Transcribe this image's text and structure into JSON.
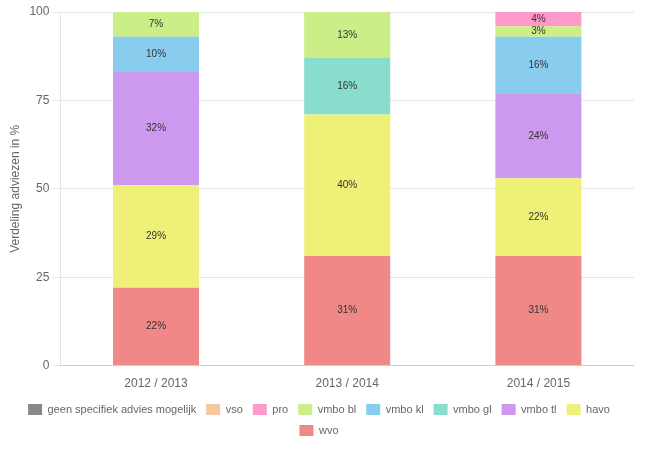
{
  "chart_data": {
    "type": "bar",
    "stacked": true,
    "categories": [
      "2012 / 2013",
      "2013 / 2014",
      "2014 / 2015"
    ],
    "series": [
      {
        "name": "geen specifiek advies mogelijk",
        "color": "#888888",
        "values": [
          0,
          0,
          0
        ],
        "value_labels": [
          null,
          null,
          null
        ]
      },
      {
        "name": "vso",
        "color": "#f5c8a0",
        "values": [
          0,
          0,
          0
        ],
        "value_labels": [
          null,
          null,
          null
        ]
      },
      {
        "name": "pro",
        "color": "#ff99cc",
        "values": [
          0,
          0,
          4
        ],
        "value_labels": [
          null,
          null,
          "4%"
        ]
      },
      {
        "name": "vmbo bl",
        "color": "#ccee88",
        "values": [
          7,
          13,
          3
        ],
        "value_labels": [
          "7%",
          "13%",
          "3%"
        ]
      },
      {
        "name": "vmbo kl",
        "color": "#88ccee",
        "values": [
          10,
          0,
          16
        ],
        "value_labels": [
          "10%",
          null,
          "16%"
        ]
      },
      {
        "name": "vmbo gl",
        "color": "#88ddcc",
        "values": [
          0,
          16,
          0
        ],
        "value_labels": [
          null,
          "16%",
          null
        ]
      },
      {
        "name": "vmbo tl",
        "color": "#cc99ee",
        "values": [
          32,
          0,
          24
        ],
        "value_labels": [
          "32%",
          null,
          "24%"
        ]
      },
      {
        "name": "havo",
        "color": "#eef077",
        "values": [
          29,
          40,
          22
        ],
        "value_labels": [
          "29%",
          "40%",
          "22%"
        ]
      },
      {
        "name": "wvo",
        "color": "#f08888",
        "values": [
          22,
          31,
          31
        ],
        "value_labels": [
          "22%",
          "31%",
          "31%"
        ]
      }
    ],
    "ylabel": "Verdeling adviezen in %",
    "ylim": [
      0,
      100
    ],
    "yticks": [
      0,
      25,
      50,
      75,
      100
    ],
    "grid": true,
    "legend": "bottom",
    "data_labels": true
  }
}
